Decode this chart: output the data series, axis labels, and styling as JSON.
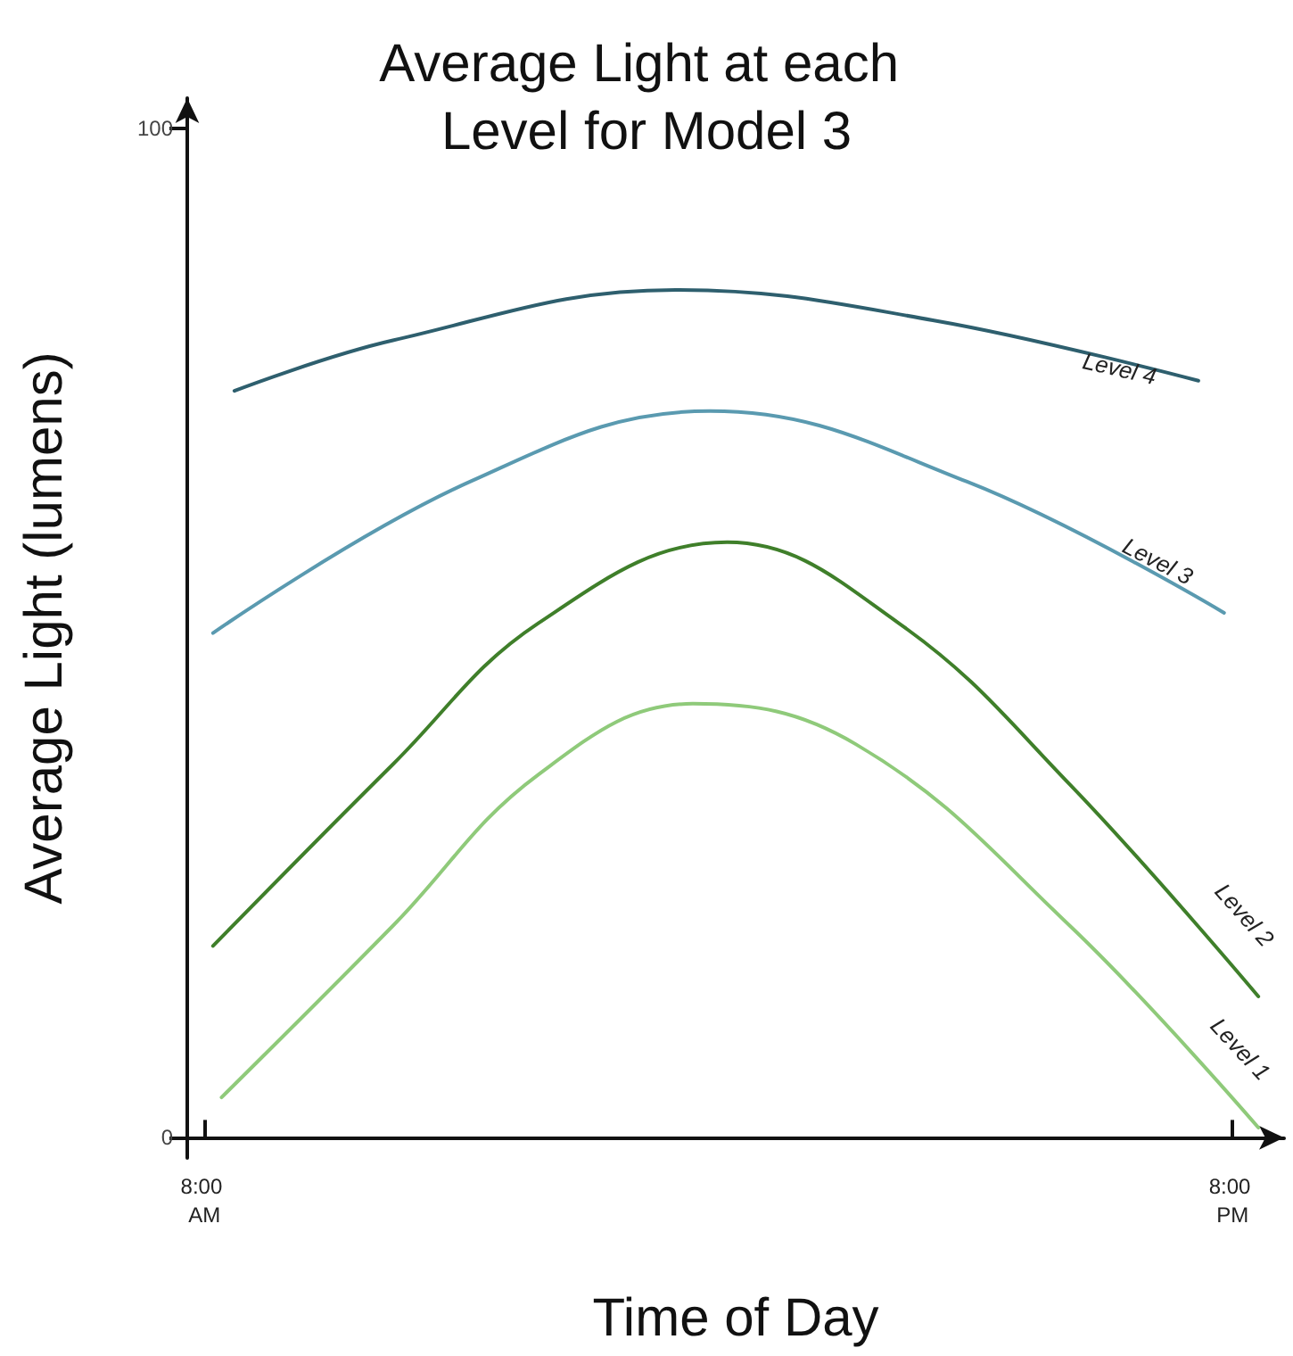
{
  "chart_data": {
    "type": "line",
    "title": "Average Light at each Level for Model 3",
    "xlabel": "Time of Day",
    "ylabel": "Average Light (lumens)",
    "xlim": [
      7.8,
      20.6
    ],
    "xticks": [
      {
        "value": 8,
        "label": "8:00 AM"
      },
      {
        "value": 20,
        "label": "8:00 PM"
      }
    ],
    "ylim": [
      -2,
      103
    ],
    "yticks": [
      0,
      100
    ],
    "grid": false,
    "legend": false,
    "marker": "none",
    "line_style": "solid",
    "series": [
      {
        "name": "Level 4",
        "color": "#2e5f6e",
        "x": [
          8.35,
          10.2,
          13.5,
          16.5,
          19.6
        ],
        "values": [
          74,
          79,
          84,
          81,
          75
        ]
      },
      {
        "name": "Level 3",
        "color": "#5a9ab0",
        "x": [
          8.1,
          11.1,
          13.9,
          16.9,
          19.9
        ],
        "values": [
          50,
          65,
          72,
          65,
          52
        ]
      },
      {
        "name": "Level 2",
        "color": "#3f7f2a",
        "x": [
          8.1,
          10.2,
          11.9,
          14.1,
          16.1,
          18.1,
          20.3
        ],
        "values": [
          19,
          37,
          51,
          59,
          51,
          35,
          14
        ]
      },
      {
        "name": "Level 1",
        "color": "#8fca7a",
        "x": [
          8.2,
          10.2,
          11.9,
          13.7,
          15.6,
          18.1,
          20.3
        ],
        "values": [
          4,
          21,
          36,
          43,
          39,
          21,
          1
        ]
      }
    ]
  }
}
